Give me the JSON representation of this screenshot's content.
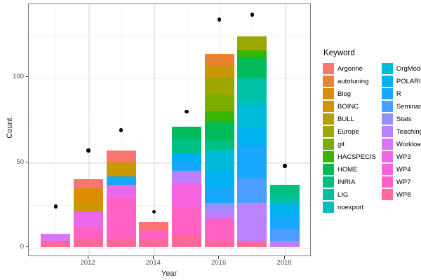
{
  "axes": {
    "x": {
      "title": "Year",
      "tick_labels": [
        "2012",
        "2014",
        "2016",
        "2018"
      ]
    },
    "y": {
      "title": "Count",
      "tick_labels": [
        "0",
        "50",
        "100"
      ]
    }
  },
  "legend": {
    "title": "Keyword",
    "entries": [
      {
        "label": "Argonne",
        "color": "#F8766D"
      },
      {
        "label": "autotuning",
        "color": "#EA8331"
      },
      {
        "label": "Blog",
        "color": "#DB8E00"
      },
      {
        "label": "BOINC",
        "color": "#C99800"
      },
      {
        "label": "BULL",
        "color": "#B2A100"
      },
      {
        "label": "Europe",
        "color": "#9CA700"
      },
      {
        "label": "git",
        "color": "#7CAD00"
      },
      {
        "label": "HACSPECIS",
        "color": "#35B600"
      },
      {
        "label": "HOME",
        "color": "#00BB57"
      },
      {
        "label": "INRIA",
        "color": "#00BF85"
      },
      {
        "label": "LIG",
        "color": "#00C1A4"
      },
      {
        "label": "noexport",
        "color": "#00BFC0"
      },
      {
        "label": "OrgMode",
        "color": "#00BBDA"
      },
      {
        "label": "POLARIS",
        "color": "#00B2F0"
      },
      {
        "label": "R",
        "color": "#19A6FF"
      },
      {
        "label": "Seminar",
        "color": "#4B9EFF"
      },
      {
        "label": "Stats",
        "color": "#9590FF"
      },
      {
        "label": "Teaching",
        "color": "#BC81FF"
      },
      {
        "label": "Workload",
        "color": "#D874FD"
      },
      {
        "label": "WP3",
        "color": "#EC67E9"
      },
      {
        "label": "WP4",
        "color": "#F763DF"
      },
      {
        "label": "WP7",
        "color": "#FF61C5"
      },
      {
        "label": "WP8",
        "color": "#FF6899"
      }
    ]
  },
  "chart_data": {
    "type": "bar",
    "stacked": true,
    "title": "",
    "xlabel": "Year",
    "ylabel": "Count",
    "legend_title": "Keyword",
    "legend_position": "right",
    "grid": true,
    "categories": [
      2011,
      2012,
      2013,
      2014,
      2015,
      2016,
      2017,
      2018
    ],
    "x_major_ticks": [
      2012,
      2014,
      2016,
      2018
    ],
    "x_minor_ticks": [
      2011,
      2013,
      2015,
      2017
    ],
    "y_major_ticks": [
      0,
      50,
      100
    ],
    "y_minor_ticks": [
      25,
      75,
      125
    ],
    "ylim": [
      -7,
      143
    ],
    "xlim": [
      2010.45,
      2018.55
    ],
    "bars": [
      {
        "year": 2011,
        "total": 8,
        "segments": [
          {
            "keyword": "Workload",
            "value": 4
          },
          {
            "keyword": "WP8",
            "value": 4
          }
        ]
      },
      {
        "year": 2012,
        "total": 40,
        "segments": [
          {
            "keyword": "Argonne",
            "value": 5
          },
          {
            "keyword": "Blog",
            "value": 9
          },
          {
            "keyword": "BOINC",
            "value": 5
          },
          {
            "keyword": "WP3",
            "value": 9
          },
          {
            "keyword": "WP7",
            "value": 7
          },
          {
            "keyword": "WP8",
            "value": 5
          }
        ]
      },
      {
        "year": 2013,
        "total": 57,
        "segments": [
          {
            "keyword": "Argonne",
            "value": 7
          },
          {
            "keyword": "BOINC",
            "value": 8
          },
          {
            "keyword": "R",
            "value": 5
          },
          {
            "keyword": "WP3",
            "value": 8
          },
          {
            "keyword": "WP7",
            "value": 24
          },
          {
            "keyword": "WP8",
            "value": 5
          }
        ]
      },
      {
        "year": 2014,
        "total": 15,
        "segments": [
          {
            "keyword": "Argonne",
            "value": 5
          },
          {
            "keyword": "WP7",
            "value": 5
          },
          {
            "keyword": "WP8",
            "value": 5
          }
        ]
      },
      {
        "year": 2015,
        "total": 71,
        "segments": [
          {
            "keyword": "HOME",
            "value": 7
          },
          {
            "keyword": "INRIA",
            "value": 9
          },
          {
            "keyword": "POLARIS",
            "value": 5
          },
          {
            "keyword": "R",
            "value": 5
          },
          {
            "keyword": "Teaching",
            "value": 7
          },
          {
            "keyword": "WP4",
            "value": 14
          },
          {
            "keyword": "WP7",
            "value": 17
          },
          {
            "keyword": "WP8",
            "value": 7
          }
        ]
      },
      {
        "year": 2016,
        "total": 114,
        "segments": [
          {
            "keyword": "autotuning",
            "value": 7
          },
          {
            "keyword": "BOINC",
            "value": 7
          },
          {
            "keyword": "Europe",
            "value": 10
          },
          {
            "keyword": "git",
            "value": 10
          },
          {
            "keyword": "HACSPECIS",
            "value": 6
          },
          {
            "keyword": "HOME",
            "value": 11
          },
          {
            "keyword": "INRIA",
            "value": 6
          },
          {
            "keyword": "OrgMode",
            "value": 11
          },
          {
            "keyword": "POLARIS",
            "value": 11
          },
          {
            "keyword": "R",
            "value": 9
          },
          {
            "keyword": "Stats",
            "value": 4
          },
          {
            "keyword": "Teaching",
            "value": 5
          },
          {
            "keyword": "WP7",
            "value": 13
          },
          {
            "keyword": "WP8",
            "value": 4
          }
        ]
      },
      {
        "year": 2017,
        "total": 124,
        "segments": [
          {
            "keyword": "Europe",
            "value": 8
          },
          {
            "keyword": "HACSPECIS",
            "value": 4
          },
          {
            "keyword": "HOME",
            "value": 12
          },
          {
            "keyword": "LIG",
            "value": 13
          },
          {
            "keyword": "noexport",
            "value": 4
          },
          {
            "keyword": "OrgMode",
            "value": 12
          },
          {
            "keyword": "POLARIS",
            "value": 11
          },
          {
            "keyword": "R",
            "value": 19
          },
          {
            "keyword": "Seminar",
            "value": 15
          },
          {
            "keyword": "Teaching",
            "value": 22
          },
          {
            "keyword": "WP8",
            "value": 4
          }
        ]
      },
      {
        "year": 2018,
        "total": 37,
        "segments": [
          {
            "keyword": "INRIA",
            "value": 7
          },
          {
            "keyword": "LIG",
            "value": 4
          },
          {
            "keyword": "POLARIS",
            "value": 8
          },
          {
            "keyword": "R",
            "value": 7
          },
          {
            "keyword": "Seminar",
            "value": 7
          },
          {
            "keyword": "Teaching",
            "value": 4
          }
        ]
      }
    ],
    "points": [
      {
        "year": 2011,
        "value": 24
      },
      {
        "year": 2012,
        "value": 57
      },
      {
        "year": 2013,
        "value": 69
      },
      {
        "year": 2014,
        "value": 21
      },
      {
        "year": 2015,
        "value": 80
      },
      {
        "year": 2016,
        "value": 134
      },
      {
        "year": 2017,
        "value": 137
      },
      {
        "year": 2018,
        "value": 48
      }
    ]
  }
}
